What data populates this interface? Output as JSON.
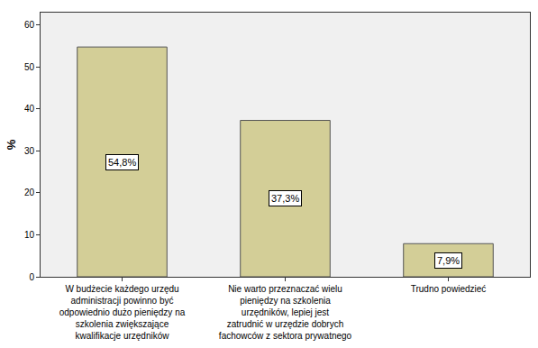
{
  "chart_data": {
    "type": "bar",
    "categories": [
      "W budżecie każdego urzędu administracji powinno być odpowiednio dużo pieniędzy na szkolenia zwiększające kwalifikacje urzędników",
      "Nie warto przeznaczać wielu pieniędzy na szkolenia urzędników, lepiej jest zatrudnić w urzędzie dobrych fachowców z sektora prywatnego",
      "Trudno powiedzieć"
    ],
    "values": [
      54.8,
      37.3,
      7.9
    ],
    "value_labels": [
      "54,8%",
      "37,3%",
      "7,9%"
    ],
    "color": "#d3ce97",
    "y_label": "%",
    "ylim": [
      0,
      63
    ],
    "yticks": [
      0,
      10,
      20,
      30,
      40,
      50,
      60
    ],
    "data_labels": true,
    "grid": false
  }
}
